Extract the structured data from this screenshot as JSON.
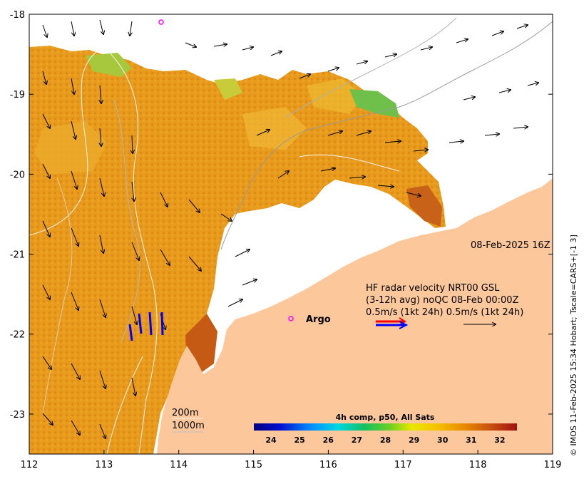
{
  "map": {
    "x_axis": {
      "range": [
        112,
        119
      ],
      "ticks": [
        "112",
        "113",
        "114",
        "115",
        "116",
        "117",
        "118",
        "119"
      ]
    },
    "y_axis": {
      "range": [
        -23.5,
        -18
      ],
      "ticks": [
        "-18",
        "-19",
        "-20",
        "-21",
        "-22",
        "-23"
      ]
    },
    "land_color": "#fcc89b",
    "ocean_color": "#ffffff",
    "datetime_label": "08-Feb-2025 16Z",
    "legend": {
      "line1": "HF radar velocity  NRT00 GSL",
      "line2": "(3-12h avg) noQC 08-Feb 00:00Z",
      "line3": "0.5m/s (1kt 24h)  0.5m/s (1kt 24h)"
    },
    "argo": {
      "label": "Argo",
      "marker_color": "#ff00ff",
      "lon": 115.45,
      "lat": -21.85
    },
    "argo_top": {
      "lon": 113.8,
      "lat": -18.1
    },
    "isobath_labels": [
      "200m",
      "1000m"
    ],
    "colorbar": {
      "title": "4h comp, p50, All Sats",
      "ticks": [
        "24",
        "25",
        "26",
        "27",
        "28",
        "29",
        "30",
        "31",
        "32"
      ],
      "range": [
        23.4,
        32.6
      ]
    },
    "side_caption": "© IMOS 11-Feb-2025 15:34 Hobart; Tscale=CARS+[-1 3]"
  }
}
